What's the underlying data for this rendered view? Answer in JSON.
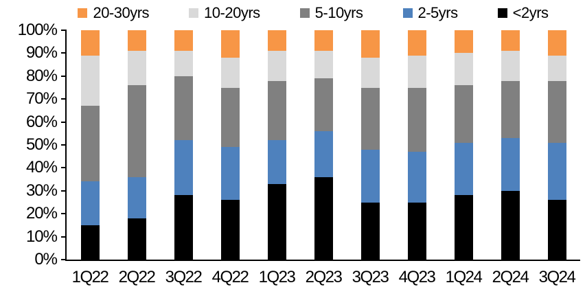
{
  "chart_data": {
    "type": "bar",
    "stacked": true,
    "stacked_total": 100,
    "title": "",
    "xlabel": "",
    "ylabel": "",
    "grid": false,
    "legend_position": "top",
    "legend_order": [
      "20-30yrs",
      "10-20yrs",
      "5-10yrs",
      "2-5yrs",
      "<2yrs"
    ],
    "categories": [
      "1Q22",
      "2Q22",
      "3Q22",
      "4Q22",
      "1Q23",
      "2Q23",
      "3Q23",
      "4Q23",
      "1Q24",
      "2Q24",
      "3Q24"
    ],
    "series": [
      {
        "name": "<2yrs",
        "color": "#000000",
        "values": [
          15,
          18,
          28,
          26,
          33,
          36,
          25,
          25,
          28,
          30,
          26
        ]
      },
      {
        "name": "2-5yrs",
        "color": "#4E81BD",
        "values": [
          19,
          18,
          24,
          23,
          19,
          20,
          23,
          22,
          23,
          23,
          25
        ]
      },
      {
        "name": "5-10yrs",
        "color": "#808080",
        "values": [
          33,
          40,
          28,
          26,
          26,
          23,
          27,
          28,
          25,
          25,
          27
        ]
      },
      {
        "name": "10-20yrs",
        "color": "#D9D9D9",
        "values": [
          22,
          15,
          11,
          13,
          13,
          12,
          13,
          14,
          14,
          13,
          11
        ]
      },
      {
        "name": "20-30yrs",
        "color": "#F79646",
        "values": [
          11,
          9,
          9,
          12,
          9,
          9,
          12,
          11,
          10,
          9,
          11
        ]
      }
    ],
    "y_axis": {
      "min": 0,
      "max": 100,
      "step": 10,
      "tick_labels": [
        "0%",
        "10%",
        "20%",
        "30%",
        "40%",
        "50%",
        "60%",
        "70%",
        "80%",
        "90%",
        "100%"
      ]
    },
    "axis_color": "#000000"
  }
}
